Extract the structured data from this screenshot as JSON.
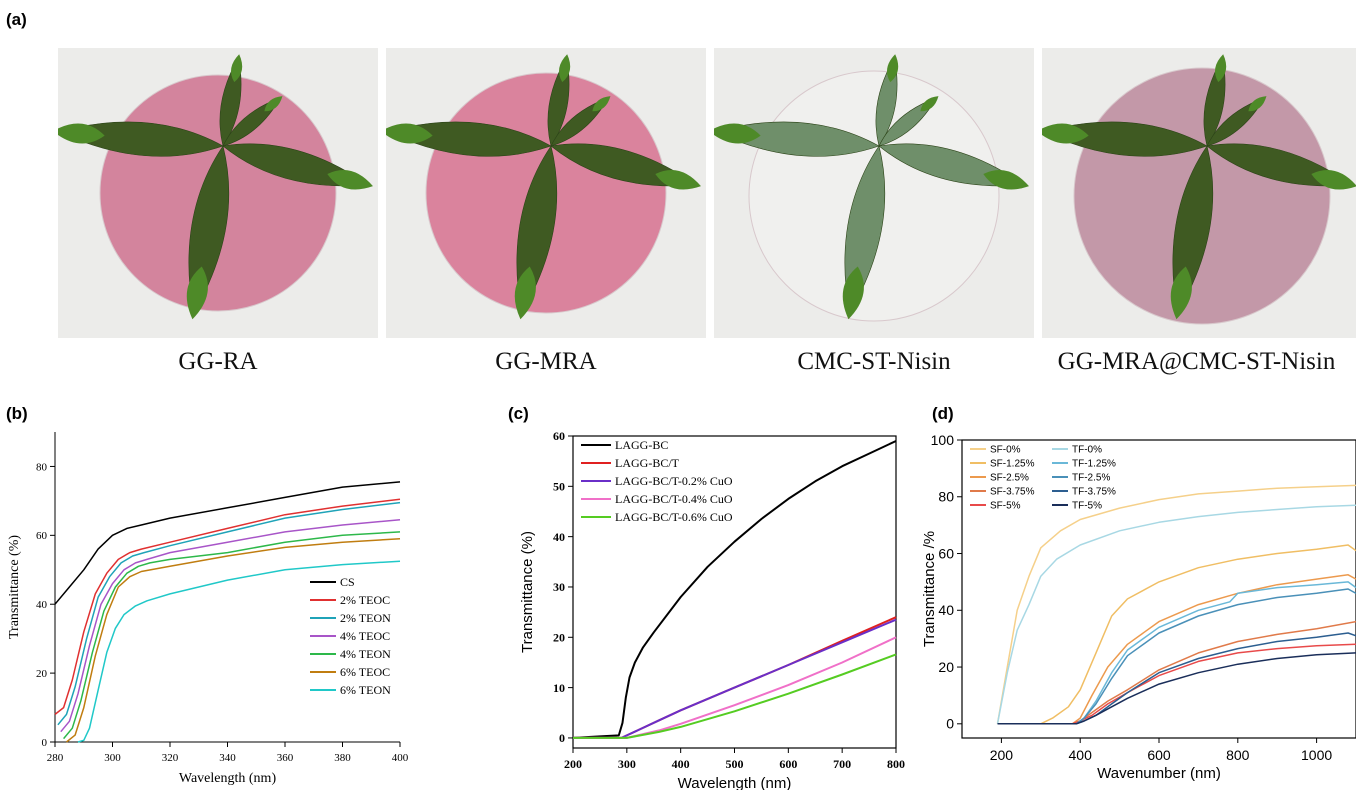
{
  "panels": {
    "a": "(a)",
    "b": "(b)",
    "c": "(c)",
    "d": "(d)"
  },
  "photos": [
    {
      "caption": "GG-RA",
      "film_color": "#c9587c",
      "film_opacity": 0.7
    },
    {
      "caption": "GG-MRA",
      "film_color": "#d35a80",
      "film_opacity": 0.72
    },
    {
      "caption": "CMC-ST-Nisin",
      "film_color": "#f4f4f0",
      "film_opacity": 0.6
    },
    {
      "caption": "GG-MRA@CMC-ST-Nisin",
      "film_color": "#a9607c",
      "film_opacity": 0.6
    }
  ],
  "chart_data": [
    {
      "panel": "b",
      "type": "line",
      "xlabel": "Wavelength (nm)",
      "ylabel": "Transmittance (%)",
      "xlim": [
        280,
        400
      ],
      "ylim": [
        0,
        90
      ],
      "xticks": [
        280,
        300,
        320,
        340,
        360,
        380,
        400
      ],
      "yticks": [
        0,
        20,
        40,
        60,
        80
      ],
      "legend_position": "lower-right",
      "series": [
        {
          "name": "CS",
          "color": "#000000",
          "x": [
            280,
            285,
            290,
            295,
            300,
            305,
            310,
            320,
            340,
            360,
            380,
            400
          ],
          "y": [
            40,
            45,
            50,
            56,
            60,
            62,
            63,
            65,
            68,
            71,
            74,
            75.5
          ]
        },
        {
          "name": "2% TEOC",
          "color": "#e03030",
          "x": [
            280,
            283,
            286,
            290,
            294,
            298,
            302,
            306,
            310,
            320,
            340,
            360,
            380,
            400
          ],
          "y": [
            8,
            10,
            18,
            32,
            43,
            49,
            53,
            55,
            56,
            58,
            62,
            66,
            68.5,
            70.5
          ]
        },
        {
          "name": "2% TEON",
          "color": "#1fa3b8",
          "x": [
            281,
            284,
            287,
            291,
            295,
            299,
            303,
            307,
            311,
            320,
            340,
            360,
            380,
            400
          ],
          "y": [
            5,
            8,
            16,
            30,
            42,
            48,
            52,
            54,
            55,
            57,
            61,
            65,
            67.5,
            69.5
          ]
        },
        {
          "name": "4% TEOC",
          "color": "#a855c8",
          "x": [
            282,
            285,
            288,
            292,
            296,
            300,
            304,
            308,
            312,
            320,
            340,
            360,
            380,
            400
          ],
          "y": [
            3,
            6,
            14,
            28,
            40,
            46,
            50,
            52,
            53,
            55,
            58,
            61,
            63,
            64.5
          ]
        },
        {
          "name": "4% TEON",
          "color": "#2db84a",
          "x": [
            283,
            286,
            289,
            293,
            297,
            301,
            305,
            309,
            313,
            320,
            340,
            360,
            380,
            400
          ],
          "y": [
            1,
            4,
            12,
            26,
            38,
            45,
            49,
            51,
            52,
            53,
            55,
            58,
            60,
            61
          ]
        },
        {
          "name": "6% TEOC",
          "color": "#c07d10",
          "x": [
            284,
            287,
            290,
            294,
            298,
            302,
            306,
            310,
            320,
            340,
            360,
            380,
            400
          ],
          "y": [
            0,
            2,
            10,
            25,
            37,
            45,
            48,
            49.5,
            51,
            54,
            56.5,
            58,
            59
          ]
        },
        {
          "name": "6% TEON",
          "color": "#20c8c8",
          "x": [
            288,
            290,
            292,
            295,
            298,
            301,
            304,
            308,
            312,
            320,
            340,
            360,
            380,
            400
          ],
          "y": [
            0,
            0.5,
            4,
            15,
            26,
            33,
            37,
            39.5,
            41,
            43,
            47,
            50,
            51.5,
            52.5
          ]
        }
      ]
    },
    {
      "panel": "c",
      "type": "line",
      "xlabel": "Wavelength (nm)",
      "ylabel": "Transmittance (%)",
      "xlim": [
        200,
        800
      ],
      "ylim": [
        -2,
        60
      ],
      "xticks": [
        200,
        300,
        400,
        500,
        600,
        700,
        800
      ],
      "yticks": [
        0,
        10,
        20,
        30,
        40,
        50,
        60
      ],
      "legend_position": "top-left",
      "series": [
        {
          "name": "LAGG-BC",
          "color": "#000000",
          "x": [
            200,
            250,
            285,
            292,
            298,
            305,
            315,
            330,
            350,
            400,
            450,
            500,
            550,
            600,
            650,
            700,
            750,
            800
          ],
          "y": [
            0,
            0.3,
            0.5,
            3,
            8,
            12,
            15,
            18,
            21,
            28,
            34,
            39,
            43.5,
            47.5,
            51,
            54,
            56.5,
            59
          ]
        },
        {
          "name": "LAGG-BC/T",
          "color": "#e02020",
          "x": [
            200,
            290,
            300,
            320,
            360,
            400,
            500,
            600,
            700,
            800
          ],
          "y": [
            0,
            0,
            0.5,
            1.5,
            3.5,
            5.5,
            10,
            14.5,
            19.3,
            24
          ]
        },
        {
          "name": "LAGG-BC/T-0.2% CuO",
          "color": "#6a2fc8",
          "x": [
            200,
            290,
            300,
            320,
            360,
            400,
            500,
            600,
            700,
            800
          ],
          "y": [
            0,
            0,
            0.5,
            1.5,
            3.5,
            5.5,
            10,
            14.5,
            19,
            23.5
          ]
        },
        {
          "name": "LAGG-BC/T-0.4% CuO",
          "color": "#f070c8",
          "x": [
            200,
            300,
            320,
            360,
            400,
            500,
            600,
            700,
            800
          ],
          "y": [
            0,
            0,
            0.5,
            1.5,
            2.8,
            6.5,
            10.5,
            15,
            20
          ]
        },
        {
          "name": "LAGG-BC/T-0.6% CuO",
          "color": "#55cc22",
          "x": [
            200,
            300,
            320,
            360,
            400,
            500,
            600,
            700,
            800
          ],
          "y": [
            0,
            0,
            0.4,
            1.2,
            2.2,
            5.3,
            8.8,
            12.6,
            16.6
          ]
        }
      ]
    },
    {
      "panel": "d",
      "type": "line",
      "xlabel": "Wavenumber (nm)",
      "ylabel": "Transmittance /%",
      "xlim": [
        100,
        1100
      ],
      "ylim": [
        -5,
        100
      ],
      "xticks": [
        200,
        400,
        600,
        800,
        1000
      ],
      "yticks": [
        0,
        20,
        40,
        60,
        80,
        100
      ],
      "legend_position": "top-left",
      "series": [
        {
          "name": "SF-0%",
          "color": "#f5d08a",
          "x": [
            190,
            215,
            240,
            270,
            300,
            350,
            400,
            500,
            600,
            700,
            800,
            900,
            1000,
            1100
          ],
          "y": [
            0,
            20,
            40,
            52,
            62,
            68,
            72,
            76,
            79,
            81,
            82,
            83,
            83.5,
            84
          ]
        },
        {
          "name": "SF-1.25%",
          "color": "#f0be64",
          "x": [
            190,
            300,
            330,
            370,
            400,
            440,
            480,
            520,
            600,
            700,
            800,
            900,
            1000,
            1080,
            1100
          ],
          "y": [
            0,
            0,
            2,
            6,
            12,
            25,
            38,
            44,
            50,
            55,
            58,
            60,
            61.5,
            63,
            61
          ]
        },
        {
          "name": "SF-2.5%",
          "color": "#ec9a4e",
          "x": [
            190,
            380,
            400,
            430,
            470,
            520,
            600,
            700,
            800,
            900,
            1000,
            1080,
            1100
          ],
          "y": [
            0,
            0,
            2,
            10,
            20,
            28,
            36,
            42,
            46,
            49,
            51,
            52.5,
            51
          ]
        },
        {
          "name": "SF-3.75%",
          "color": "#e07a4a",
          "x": [
            190,
            380,
            400,
            430,
            470,
            520,
            600,
            700,
            800,
            900,
            1000,
            1100
          ],
          "y": [
            0,
            0,
            1,
            4,
            8,
            12,
            19,
            25,
            29,
            31.5,
            33.5,
            36
          ]
        },
        {
          "name": "SF-5%",
          "color": "#e84a4a",
          "x": [
            190,
            380,
            400,
            430,
            470,
            520,
            600,
            700,
            800,
            900,
            1000,
            1100
          ],
          "y": [
            0,
            0,
            1,
            3,
            7,
            11,
            17,
            22,
            25,
            26.5,
            27.5,
            28
          ]
        },
        {
          "name": "TF-0%",
          "color": "#a8d8e4",
          "x": [
            190,
            215,
            240,
            270,
            300,
            340,
            400,
            500,
            600,
            700,
            800,
            900,
            1000,
            1100
          ],
          "y": [
            0,
            18,
            33,
            42,
            52,
            58,
            63,
            68,
            71,
            73,
            74.5,
            75.5,
            76.5,
            77
          ]
        },
        {
          "name": "TF-1.25%",
          "color": "#6ab8d8",
          "x": [
            190,
            390,
            410,
            440,
            480,
            520,
            600,
            700,
            780,
            800,
            900,
            1000,
            1080,
            1100
          ],
          "y": [
            0,
            0,
            2,
            8,
            18,
            26,
            34,
            40,
            43,
            46,
            48,
            49,
            50,
            48
          ]
        },
        {
          "name": "TF-2.5%",
          "color": "#4a90b8",
          "x": [
            190,
            390,
            410,
            440,
            480,
            520,
            600,
            700,
            800,
            900,
            1000,
            1080,
            1100
          ],
          "y": [
            0,
            0,
            2,
            7,
            16,
            24,
            32,
            38,
            42,
            44.5,
            46,
            47.5,
            46
          ]
        },
        {
          "name": "TF-3.75%",
          "color": "#2c5e90",
          "x": [
            190,
            390,
            410,
            440,
            480,
            520,
            600,
            700,
            800,
            900,
            1000,
            1080,
            1100
          ],
          "y": [
            0,
            0,
            1,
            3,
            7,
            11,
            18,
            23,
            26.5,
            29,
            30.5,
            32,
            31
          ]
        },
        {
          "name": "TF-5%",
          "color": "#1a2e5a",
          "x": [
            190,
            390,
            410,
            440,
            480,
            520,
            600,
            700,
            800,
            900,
            1000,
            1100
          ],
          "y": [
            0,
            0,
            1,
            3,
            6,
            9,
            14,
            18,
            21,
            23,
            24.3,
            25
          ]
        }
      ]
    }
  ]
}
